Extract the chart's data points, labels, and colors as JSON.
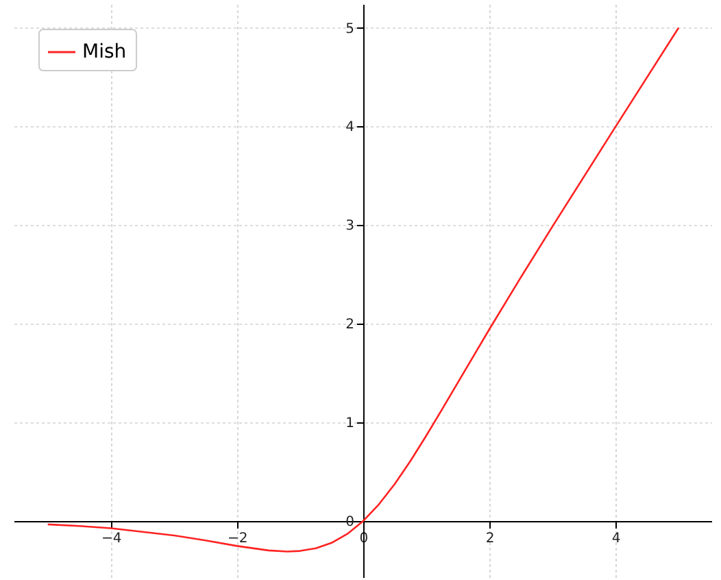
{
  "chart_data": {
    "type": "line",
    "legend": "top left",
    "grid": true,
    "x": [
      -5,
      -4.5,
      -4,
      -3,
      -2.5,
      -2,
      -1.5,
      -1.2,
      -1,
      -0.75,
      -0.5,
      -0.25,
      0,
      0.25,
      0.5,
      0.75,
      1,
      1.25,
      1.5,
      2,
      2.5,
      3,
      4,
      5
    ],
    "series": [
      {
        "name": "Mish",
        "color": "#ff2222",
        "values": [
          -0.034,
          -0.05,
          -0.073,
          -0.146,
          -0.197,
          -0.253,
          -0.298,
          -0.309,
          -0.303,
          -0.277,
          -0.221,
          -0.13,
          0,
          0.17,
          0.375,
          0.61,
          0.865,
          1.132,
          1.403,
          1.944,
          2.471,
          2.986,
          3.997,
          5.0
        ]
      }
    ],
    "xlim": [
      -5.54,
      5.52
    ],
    "ylim": [
      -0.57,
      5.24
    ],
    "xticks": [
      {
        "value": -4,
        "label": "−4"
      },
      {
        "value": -2,
        "label": "−2"
      },
      0,
      2,
      4
    ],
    "yticks": [
      0,
      1,
      2,
      3,
      4,
      5
    ]
  }
}
